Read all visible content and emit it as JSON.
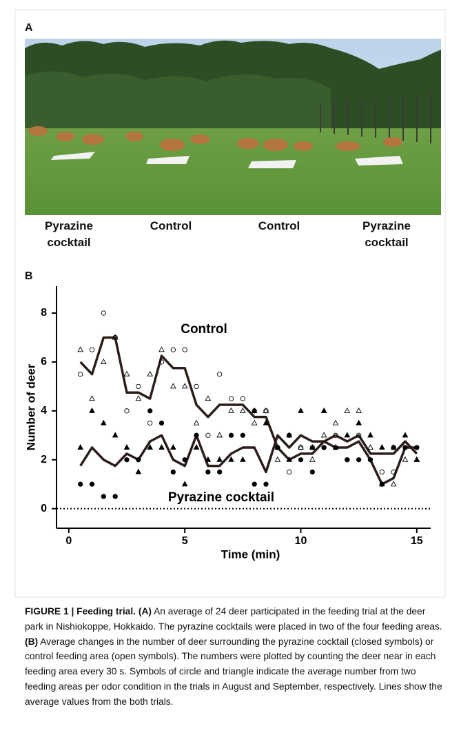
{
  "panels": {
    "a": "A",
    "b": "B"
  },
  "photo_labels": [
    "Pyrazine cocktail",
    "Control",
    "Control",
    "Pyrazine cocktail"
  ],
  "caption": [
    {
      "text": "FIGURE 1 | Feeding trial. (A)",
      "bold": true
    },
    {
      "text": " An average of 24 deer participated in the feeding trial at the deer park in Nishiokoppe, Hokkaido. The pyrazine cocktails were placed in two of the four feeding areas. ",
      "bold": false
    },
    {
      "text": "(B)",
      "bold": true
    },
    {
      "text": " Average changes in the number of deer surrounding the pyrazine cocktail (closed symbols) or control feeding area (open symbols). The numbers were plotted by counting the deer near in each feeding area every 30 s. Symbols of circle and triangle indicate the average number from two feeding areas per odor condition in the trials in August and September, respectively. Lines show the average values from the both trials.",
      "bold": false
    }
  ],
  "chart_data": {
    "type": "line",
    "xlabel": "Time (min)",
    "ylabel": "Number of deer",
    "x": [
      0.5,
      1,
      1.5,
      2,
      2.5,
      3,
      3.5,
      4,
      4.5,
      5,
      5.5,
      6,
      6.5,
      7,
      7.5,
      8,
      8.5,
      9,
      9.5,
      10,
      10.5,
      11,
      11.5,
      12,
      12.5,
      13,
      13.5,
      14,
      14.5,
      15
    ],
    "xlim": [
      -0.53,
      15.6
    ],
    "xticks": [
      0,
      5,
      10,
      15
    ],
    "ylim": [
      -0.8,
      9.1
    ],
    "yticks": [
      0,
      2,
      4,
      6,
      8
    ],
    "reference_line": 0,
    "series": [
      {
        "name": "Control",
        "color": "#2b1d1a",
        "values": [
          6,
          5.5,
          7,
          7,
          4.75,
          4.75,
          4.5,
          6.25,
          5.75,
          5.75,
          4.25,
          3.75,
          4.25,
          4.25,
          4.25,
          3.75,
          3.75,
          2.5,
          2,
          2.25,
          2.25,
          2.75,
          3,
          2.75,
          3,
          2.25,
          2.25,
          2.25,
          2.75,
          2.25
        ]
      },
      {
        "name": "Pyrazine cocktail",
        "color": "#2b1d1a",
        "values": [
          1.75,
          2.5,
          2,
          1.75,
          2.25,
          2,
          2.75,
          3,
          2,
          1.75,
          3,
          1.75,
          1.75,
          2.25,
          2.5,
          2.5,
          1.5,
          3,
          2.5,
          3,
          2.75,
          2.75,
          2.5,
          2.5,
          2.75,
          2,
          1,
          1.25,
          2.5,
          2.5
        ]
      },
      {
        "marker": "circle",
        "filled": false,
        "color": "#000000",
        "values": [
          5.5,
          6.5,
          8,
          7,
          4,
          5,
          3.5,
          6,
          6.5,
          6.5,
          5,
          3,
          5.5,
          4.5,
          4.5,
          4,
          4,
          2.5,
          1.5,
          2.5,
          2.5,
          2.5,
          3,
          2,
          3,
          2,
          1.5,
          1.5,
          2.5,
          2.5
        ]
      },
      {
        "marker": "triangle",
        "filled": false,
        "color": "#000000",
        "values": [
          6.5,
          4.5,
          6,
          7,
          5.5,
          4.5,
          5.5,
          6.5,
          5,
          5,
          3.5,
          4.5,
          3,
          4,
          4,
          3.5,
          4,
          2,
          3,
          2.5,
          2,
          3,
          3.5,
          4,
          4,
          2.5,
          1,
          1,
          2,
          2
        ]
      },
      {
        "marker": "circle",
        "filled": true,
        "color": "#000000",
        "values": [
          1,
          1,
          0.5,
          0.5,
          2,
          2,
          4,
          3.5,
          1.5,
          2,
          3,
          1.5,
          1.5,
          3,
          3,
          1,
          1,
          2.5,
          3,
          2,
          1.5,
          2.5,
          2.5,
          2,
          2,
          2,
          1,
          2.5,
          2.5,
          2.5
        ]
      },
      {
        "marker": "triangle",
        "filled": true,
        "color": "#000000",
        "values": [
          2.5,
          4,
          3.5,
          3,
          2.5,
          1.5,
          2.5,
          2.5,
          2.5,
          1,
          2.5,
          2,
          2,
          2,
          2,
          4,
          3.5,
          2.5,
          2,
          4,
          2.5,
          4,
          2.5,
          3,
          3.5,
          3,
          2.5,
          2.5,
          3,
          2
        ]
      }
    ]
  }
}
